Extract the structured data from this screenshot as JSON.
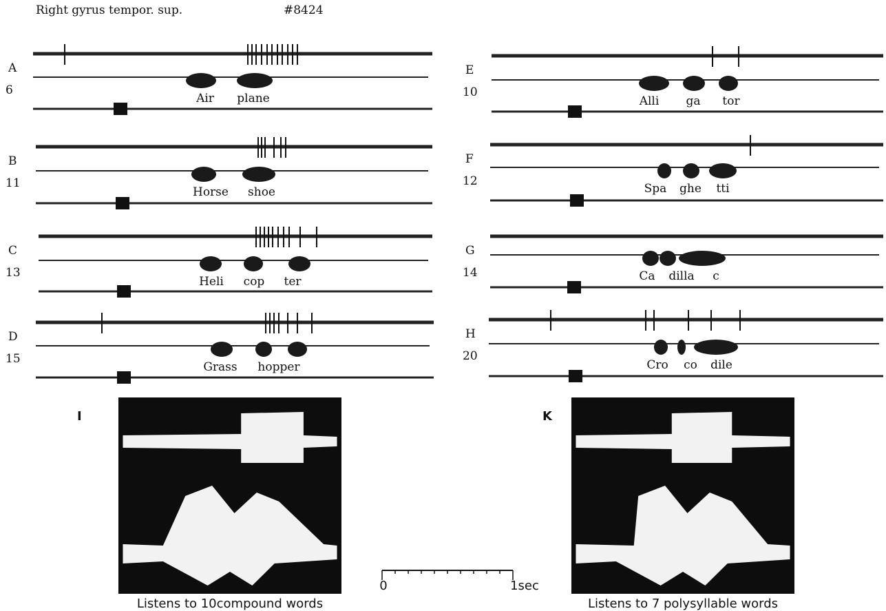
{
  "header": {
    "title": "Right gyrus tempor. sup.",
    "id": "#8424"
  },
  "panels": [
    {
      "label": "A",
      "number": "6",
      "syllables": [
        "Air",
        "plane"
      ]
    },
    {
      "label": "B",
      "number": "11",
      "syllables": [
        "Horse",
        "shoe"
      ]
    },
    {
      "label": "C",
      "number": "13",
      "syllables": [
        "Heli",
        "cop",
        "ter"
      ]
    },
    {
      "label": "D",
      "number": "15",
      "syllables": [
        "Grass",
        "hopper"
      ]
    },
    {
      "label": "E",
      "number": "10",
      "syllables": [
        "Alli",
        "ga",
        "tor"
      ]
    },
    {
      "label": "F",
      "number": "12",
      "syllables": [
        "Spa",
        "ghe",
        "tti"
      ]
    },
    {
      "label": "G",
      "number": "14",
      "syllables": [
        "Ca",
        "dilla",
        "c"
      ]
    },
    {
      "label": "H",
      "number": "20",
      "syllables": [
        "Cro",
        "co",
        "dile"
      ]
    }
  ],
  "histograms": [
    {
      "label": "I",
      "caption": "Listens to 10compound words"
    },
    {
      "label": "K",
      "caption": "Listens to 7 polysyllable words"
    }
  ],
  "scale": {
    "start": "0",
    "end": "1sec"
  }
}
